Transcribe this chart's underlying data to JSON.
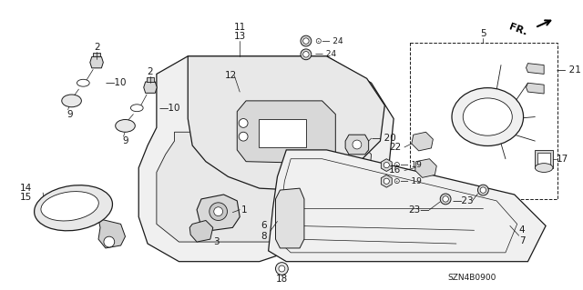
{
  "bg_color": "#ffffff",
  "line_color": "#1a1a1a",
  "part_number_label": "SZN4B0900",
  "label_fontsize": 7.5,
  "figsize": [
    6.4,
    3.19
  ],
  "dpi": 100
}
